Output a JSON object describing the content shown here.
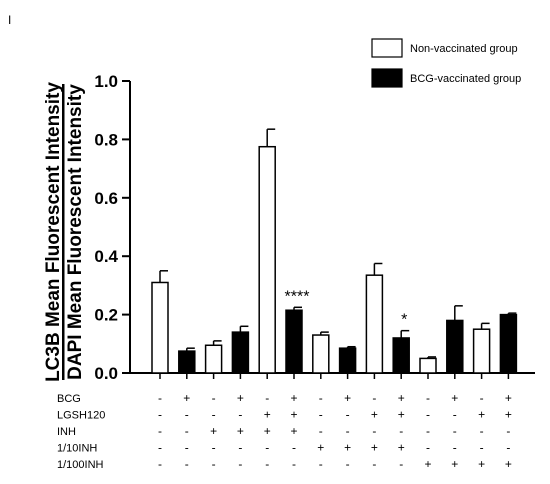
{
  "panel_label": "I",
  "chart_data": {
    "type": "bar",
    "ylabel_line1": "LC3B Mean Fluorescent Intensity",
    "ylabel_line2": "DAPI Mean Fluorescent Intensity",
    "ylim": [
      0,
      1.0
    ],
    "yticks": [
      "0.0",
      "0.2",
      "0.4",
      "0.6",
      "0.8",
      "1.0"
    ],
    "yticks_values": [
      0,
      0.2,
      0.4,
      0.6,
      0.8,
      1.0
    ],
    "legend": [
      {
        "name": "Non-vaccinated group",
        "fill": "#ffffff"
      },
      {
        "name": "BCG-vaccinated group",
        "fill": "#000000"
      }
    ],
    "bars": [
      {
        "value": 0.31,
        "error": 0.04,
        "fill": "#ffffff",
        "sig": ""
      },
      {
        "value": 0.075,
        "error": 0.01,
        "fill": "#000000",
        "sig": ""
      },
      {
        "value": 0.095,
        "error": 0.015,
        "fill": "#ffffff",
        "sig": ""
      },
      {
        "value": 0.14,
        "error": 0.02,
        "fill": "#000000",
        "sig": ""
      },
      {
        "value": 0.775,
        "error": 0.06,
        "fill": "#ffffff",
        "sig": ""
      },
      {
        "value": 0.215,
        "error": 0.01,
        "fill": "#000000",
        "sig": "****"
      },
      {
        "value": 0.13,
        "error": 0.01,
        "fill": "#ffffff",
        "sig": ""
      },
      {
        "value": 0.085,
        "error": 0.005,
        "fill": "#000000",
        "sig": ""
      },
      {
        "value": 0.335,
        "error": 0.04,
        "fill": "#ffffff",
        "sig": ""
      },
      {
        "value": 0.12,
        "error": 0.025,
        "fill": "#000000",
        "sig": "*"
      },
      {
        "value": 0.05,
        "error": 0.005,
        "fill": "#ffffff",
        "sig": ""
      },
      {
        "value": 0.18,
        "error": 0.05,
        "fill": "#000000",
        "sig": ""
      },
      {
        "value": 0.15,
        "error": 0.02,
        "fill": "#ffffff",
        "sig": ""
      },
      {
        "value": 0.2,
        "error": 0.005,
        "fill": "#000000",
        "sig": ""
      }
    ],
    "treatment_table": [
      {
        "label": "BCG",
        "cells": [
          "-",
          "+",
          "-",
          "+",
          "-",
          "+",
          "-",
          "+",
          "-",
          "+",
          "-",
          "+",
          "-",
          "+"
        ]
      },
      {
        "label": "LGSH120",
        "cells": [
          "-",
          "-",
          "-",
          "-",
          "+",
          "+",
          "-",
          "-",
          "+",
          "+",
          "-",
          "-",
          "+",
          "+"
        ]
      },
      {
        "label": "INH",
        "cells": [
          "-",
          "-",
          "+",
          "+",
          "+",
          "+",
          "-",
          "-",
          "-",
          "-",
          "-",
          "-",
          "-",
          "-"
        ]
      },
      {
        "label": "1/10INH",
        "cells": [
          "-",
          "-",
          "-",
          "-",
          "-",
          "-",
          "+",
          "+",
          "+",
          "+",
          "-",
          "-",
          "-",
          "-"
        ]
      },
      {
        "label": "1/100INH",
        "cells": [
          "-",
          "-",
          "-",
          "-",
          "-",
          "-",
          "-",
          "-",
          "-",
          "-",
          "+",
          "+",
          "+",
          "+"
        ]
      }
    ]
  }
}
